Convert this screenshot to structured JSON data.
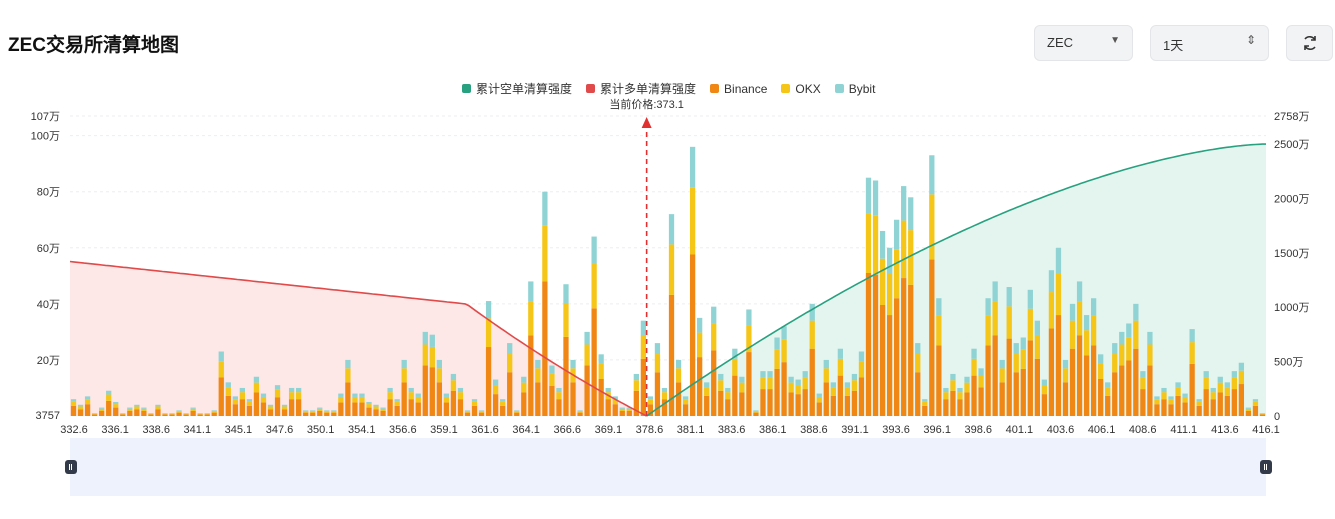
{
  "page": {
    "title": "ZEC交易所清算地图"
  },
  "controls": {
    "coin": {
      "value": "ZEC"
    },
    "timeframe": {
      "value": "1天"
    }
  },
  "icons": {
    "dropdown": "caret-down-icon",
    "stepper": "updown-icon",
    "refresh": "refresh-icon"
  },
  "colors": {
    "short_cum": "#27a17f",
    "long_cum": "#e04a4a",
    "binance": "#f08614",
    "okx": "#f5c518",
    "bybit": "#8fd3d5",
    "price_line": "#e03030"
  },
  "chart_data": {
    "type": "bar",
    "title": "",
    "legend": [
      "累计空单清算强度",
      "累计多单清算强度",
      "Binance",
      "OKX",
      "Bybit"
    ],
    "legend_position": "top",
    "current_price_label": "当前价格:373.1",
    "current_price": 373.1,
    "x_tick_labels": [
      "332.6",
      "336.1",
      "338.6",
      "341.1",
      "345.1",
      "347.6",
      "350.1",
      "354.1",
      "356.6",
      "359.1",
      "361.6",
      "364.1",
      "366.6",
      "369.1",
      "378.6",
      "381.1",
      "383.6",
      "386.1",
      "388.6",
      "391.1",
      "393.6",
      "396.1",
      "398.6",
      "401.1",
      "403.6",
      "406.1",
      "408.6",
      "411.1",
      "413.6",
      "416.1"
    ],
    "x_range": [
      332.6,
      416.6
    ],
    "left_axis": {
      "ticks": [
        "3757",
        "20万",
        "40万",
        "60万",
        "80万",
        "100万",
        "107万"
      ],
      "range": [
        0,
        1070000
      ]
    },
    "right_axis": {
      "ticks": [
        "0",
        "500万",
        "1000万",
        "1500万",
        "2000万",
        "2500万",
        "2758万"
      ],
      "range": [
        0,
        27580000
      ]
    },
    "grid": true,
    "bar_totals_wan": [
      6,
      4,
      7,
      1,
      3,
      9,
      5,
      1,
      3,
      4,
      3,
      1,
      4,
      1,
      1,
      2,
      1,
      3,
      1,
      1,
      2,
      23,
      12,
      7,
      10,
      6,
      14,
      8,
      4,
      11,
      4,
      10,
      10,
      2,
      2,
      3,
      2,
      2,
      8,
      20,
      8,
      8,
      5,
      4,
      3,
      10,
      6,
      20,
      10,
      8,
      30,
      29,
      20,
      8,
      15,
      10,
      2,
      6,
      2,
      41,
      13,
      6,
      26,
      2,
      14,
      48,
      20,
      80,
      18,
      10,
      47,
      20,
      2,
      30,
      64,
      22,
      10,
      7,
      3,
      3,
      15,
      34,
      7,
      26,
      10,
      72,
      20,
      7,
      96,
      35,
      12,
      39,
      15,
      10,
      24,
      14,
      38,
      2,
      16,
      16,
      28,
      32,
      14,
      13,
      16,
      40,
      8,
      20,
      12,
      24,
      12,
      15,
      23,
      85,
      84,
      66,
      60,
      70,
      82,
      78,
      26,
      6,
      93,
      42,
      10,
      15,
      10,
      14,
      24,
      17,
      42,
      48,
      20,
      46,
      26,
      28,
      45,
      34,
      13,
      52,
      60,
      20,
      40,
      48,
      36,
      42,
      22,
      12,
      26,
      30,
      33,
      40,
      16,
      30,
      7,
      10,
      7,
      12,
      8,
      31,
      6,
      16,
      10,
      14,
      12,
      16,
      19,
      3,
      6,
      1
    ]
  }
}
